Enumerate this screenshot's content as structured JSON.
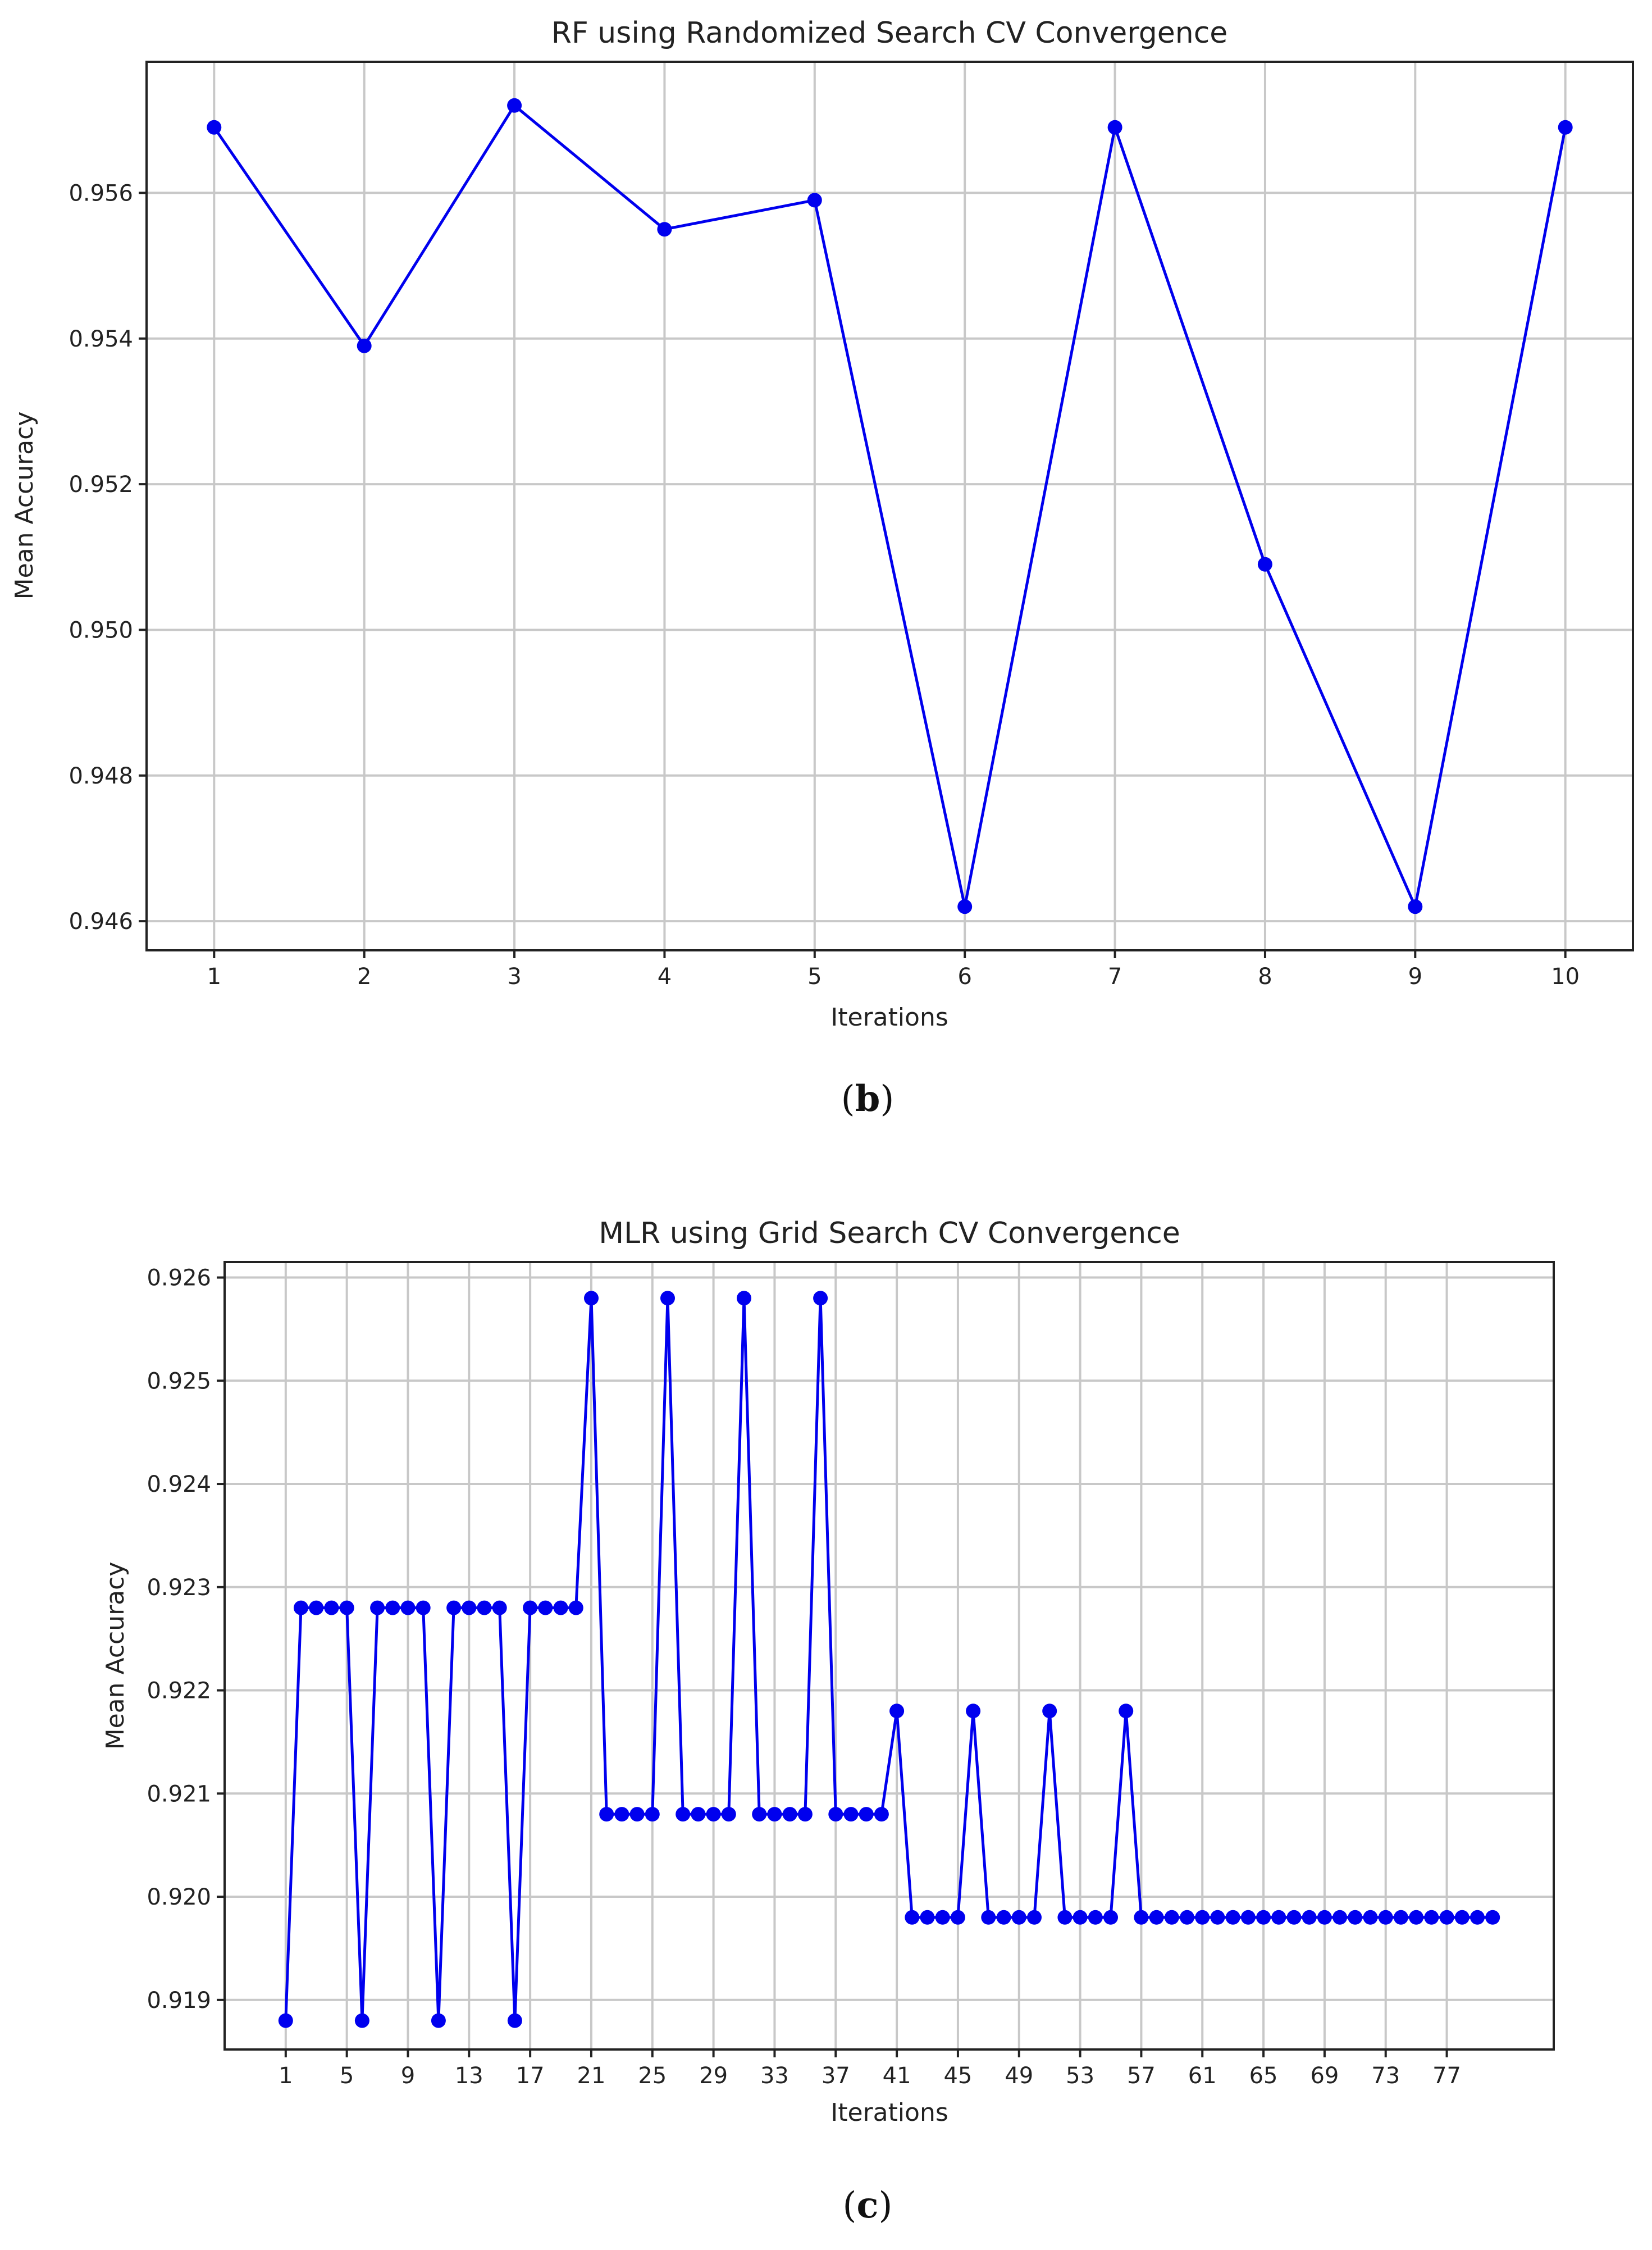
{
  "chart_data": [
    {
      "type": "line",
      "title": "RF using Randomized Search CV Convergence",
      "xlabel": "Iterations",
      "ylabel": "Mean Accuracy",
      "caption_letter": "b",
      "x": [
        1,
        2,
        3,
        4,
        5,
        6,
        7,
        8,
        9,
        10
      ],
      "series": [
        {
          "values": [
            0.9569,
            0.9539,
            0.9572,
            0.9555,
            0.9559,
            0.9462,
            0.9569,
            0.9509,
            0.9462,
            0.9569
          ]
        }
      ],
      "xticks": [
        "1",
        "2",
        "3",
        "4",
        "5",
        "6",
        "7",
        "8",
        "9",
        "10"
      ],
      "yticks": [
        "0.946",
        "0.948",
        "0.950",
        "0.952",
        "0.954",
        "0.956"
      ],
      "ytick_values": [
        0.946,
        0.948,
        0.95,
        0.952,
        0.954,
        0.956
      ],
      "xlim": [
        0.55,
        10.45
      ],
      "ylim": [
        0.9456,
        0.9578
      ],
      "grid": true,
      "color": "#0000ee"
    },
    {
      "type": "line",
      "title": "MLR using Grid Search CV Convergence",
      "xlabel": "Iterations",
      "ylabel": "Mean Accuracy",
      "caption_letter": "c",
      "x": [
        1,
        2,
        3,
        4,
        5,
        6,
        7,
        8,
        9,
        10,
        11,
        12,
        13,
        14,
        15,
        16,
        17,
        18,
        19,
        20,
        21,
        22,
        23,
        24,
        25,
        26,
        27,
        28,
        29,
        30,
        31,
        32,
        33,
        34,
        35,
        36,
        37,
        38,
        39,
        40,
        41,
        42,
        43,
        44,
        45,
        46,
        47,
        48,
        49,
        50,
        51,
        52,
        53,
        54,
        55,
        56,
        57,
        58,
        59,
        60,
        61,
        62,
        63,
        64,
        65,
        66,
        67,
        68,
        69,
        70,
        71,
        72,
        73,
        74,
        75,
        76,
        77,
        78,
        79,
        80
      ],
      "series": [
        {
          "values": [
            0.9188,
            0.9228,
            0.9228,
            0.9228,
            0.9228,
            0.9188,
            0.9228,
            0.9228,
            0.9228,
            0.9228,
            0.9188,
            0.9228,
            0.9228,
            0.9228,
            0.9228,
            0.9188,
            0.9228,
            0.9228,
            0.9228,
            0.9228,
            0.9258,
            0.9208,
            0.9208,
            0.9208,
            0.9208,
            0.9258,
            0.9208,
            0.9208,
            0.9208,
            0.9208,
            0.9258,
            0.9208,
            0.9208,
            0.9208,
            0.9208,
            0.9258,
            0.9208,
            0.9208,
            0.9208,
            0.9208,
            0.9218,
            0.9198,
            0.9198,
            0.9198,
            0.9198,
            0.9218,
            0.9198,
            0.9198,
            0.9198,
            0.9198,
            0.9218,
            0.9198,
            0.9198,
            0.9198,
            0.9198,
            0.9218,
            0.9198,
            0.9198,
            0.9198,
            0.9198,
            0.9198,
            0.9198,
            0.9198,
            0.9198,
            0.9198,
            0.9198,
            0.9198,
            0.9198,
            0.9198,
            0.9198,
            0.9198,
            0.9198,
            0.9198,
            0.9198,
            0.9198,
            0.9198,
            0.9198,
            0.9198,
            0.9198,
            0.9198
          ]
        }
      ],
      "xticks": [
        "1",
        "5",
        "9",
        "13",
        "17",
        "21",
        "25",
        "29",
        "33",
        "37",
        "41",
        "45",
        "49",
        "53",
        "57",
        "61",
        "65",
        "69",
        "73",
        "77"
      ],
      "xtick_values": [
        1,
        5,
        9,
        13,
        17,
        21,
        25,
        29,
        33,
        37,
        41,
        45,
        49,
        53,
        57,
        61,
        65,
        69,
        73,
        77
      ],
      "yticks": [
        "0.919",
        "0.920",
        "0.921",
        "0.922",
        "0.923",
        "0.924",
        "0.925",
        "0.926"
      ],
      "ytick_values": [
        0.919,
        0.92,
        0.921,
        0.922,
        0.923,
        0.924,
        0.925,
        0.926
      ],
      "xlim": [
        -3.0,
        84.0
      ],
      "ylim": [
        0.91852,
        0.92615
      ],
      "grid": true,
      "color": "#0000ee"
    }
  ]
}
